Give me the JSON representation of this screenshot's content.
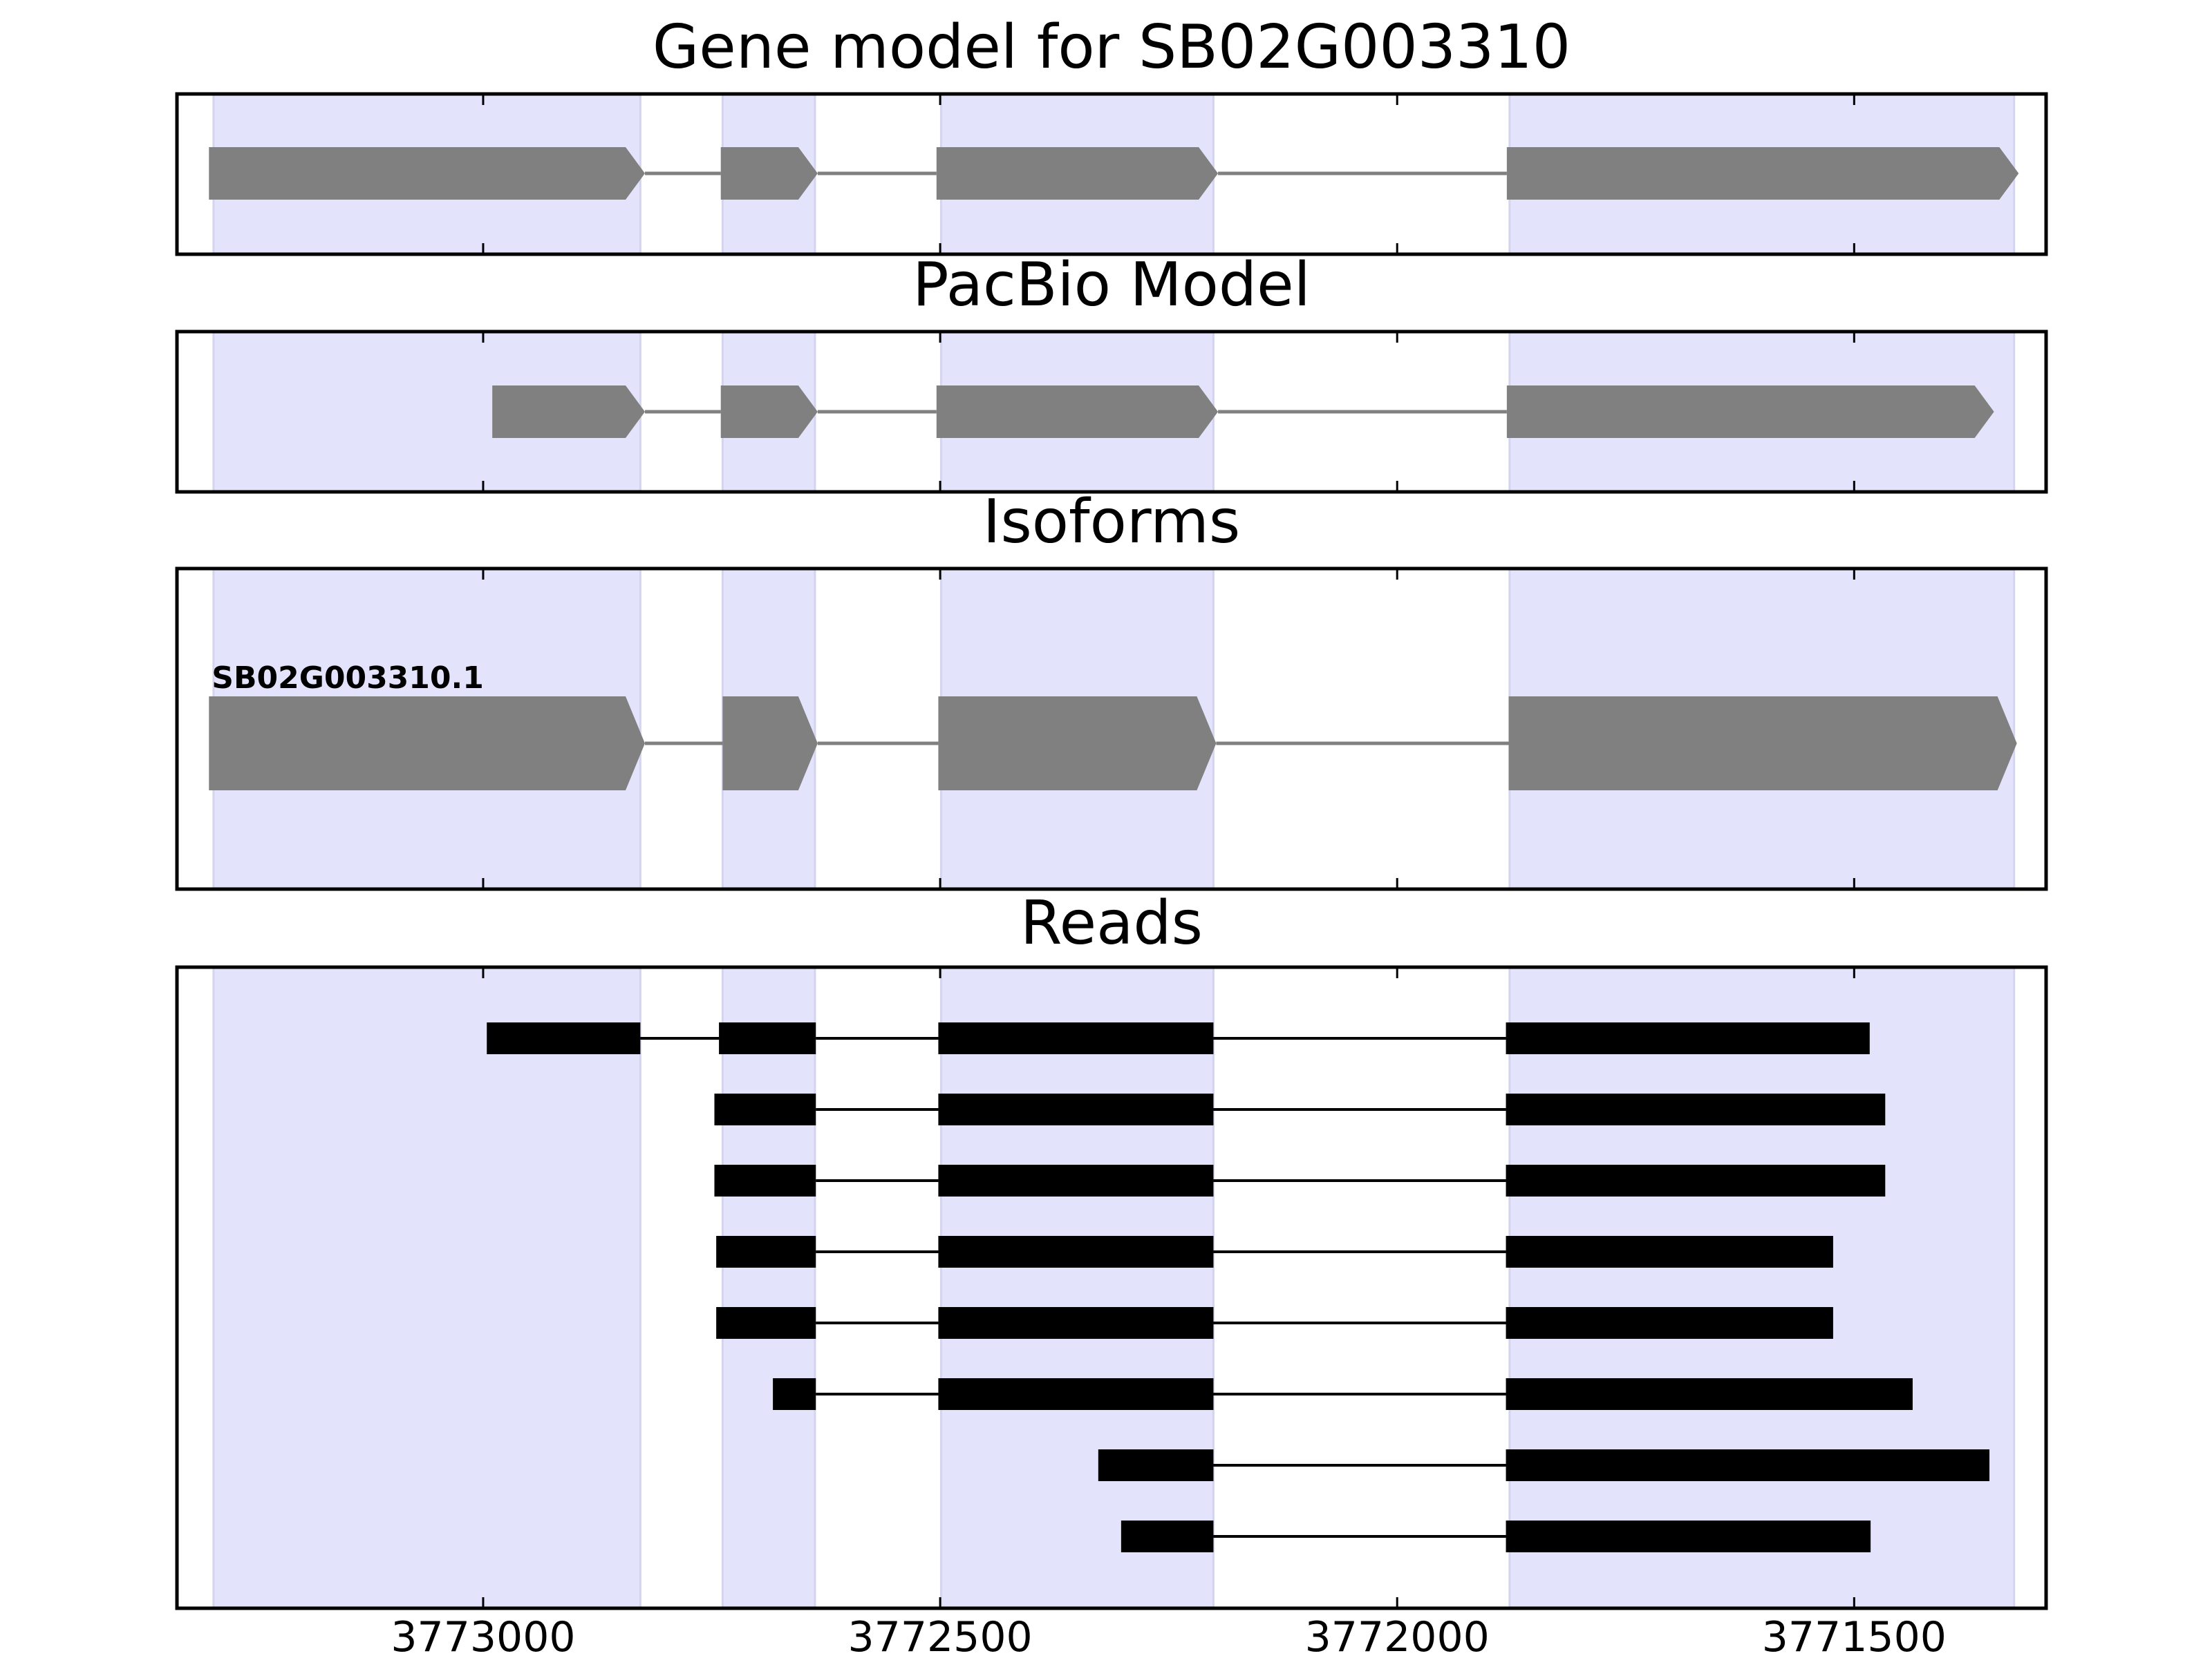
{
  "chart_data": {
    "type": "gene_model",
    "x_axis": {
      "reversed": true,
      "xlim": [
        3773335,
        3771290
      ],
      "ticks": [
        3773000,
        3772500,
        3772000,
        3771500
      ],
      "tick_labels": [
        "3773000",
        "3772500",
        "3772000",
        "3771500"
      ]
    },
    "exon_regions": [
      [
        3773295,
        3772828
      ],
      [
        3772738,
        3772637
      ],
      [
        3772499,
        3772201
      ],
      [
        3771877,
        3771325
      ]
    ],
    "colors": {
      "exon_region": "#e3e3fc",
      "feature": "#808080",
      "read": "#000000",
      "frame": "#000000"
    },
    "panels": [
      {
        "key": "gene_model",
        "title": "Gene model for SB02G003310",
        "strand": "-",
        "exons": [
          [
            3773300,
            3772823
          ],
          [
            3772740,
            3772634
          ],
          [
            3772504,
            3772196
          ],
          [
            3771880,
            3771320
          ]
        ]
      },
      {
        "key": "pacbio",
        "title": "PacBio Model",
        "strand": "-",
        "exons": [
          [
            3772990,
            3772823
          ],
          [
            3772740,
            3772634
          ],
          [
            3772504,
            3772196
          ],
          [
            3771880,
            3771347
          ]
        ]
      },
      {
        "key": "isoforms",
        "title": "Isoforms",
        "strand": "-",
        "label": "SB02G003310.1",
        "exons": [
          [
            3773300,
            3772823
          ],
          [
            3772738,
            3772634
          ],
          [
            3772502,
            3772198
          ],
          [
            3771878,
            3771322
          ]
        ]
      },
      {
        "key": "reads",
        "title": "Reads",
        "reads": [
          [
            [
              3772996,
              3772828
            ],
            [
              3772742,
              3772636
            ],
            [
              3772502,
              3772201
            ],
            [
              3771881,
              3771483
            ]
          ],
          [
            [
              3772747,
              3772636
            ],
            [
              3772502,
              3772201
            ],
            [
              3771881,
              3771466
            ]
          ],
          [
            [
              3772747,
              3772636
            ],
            [
              3772502,
              3772201
            ],
            [
              3771881,
              3771466
            ]
          ],
          [
            [
              3772745,
              3772636
            ],
            [
              3772502,
              3772201
            ],
            [
              3771881,
              3771523
            ]
          ],
          [
            [
              3772745,
              3772636
            ],
            [
              3772502,
              3772201
            ],
            [
              3771881,
              3771523
            ]
          ],
          [
            [
              3772683,
              3772636
            ],
            [
              3772502,
              3772201
            ],
            [
              3771881,
              3771436
            ]
          ],
          [
            [
              3772327,
              3772201
            ],
            [
              3771881,
              3771352
            ]
          ],
          [
            [
              3772302,
              3772201
            ],
            [
              3771881,
              3771482
            ]
          ]
        ]
      }
    ]
  }
}
